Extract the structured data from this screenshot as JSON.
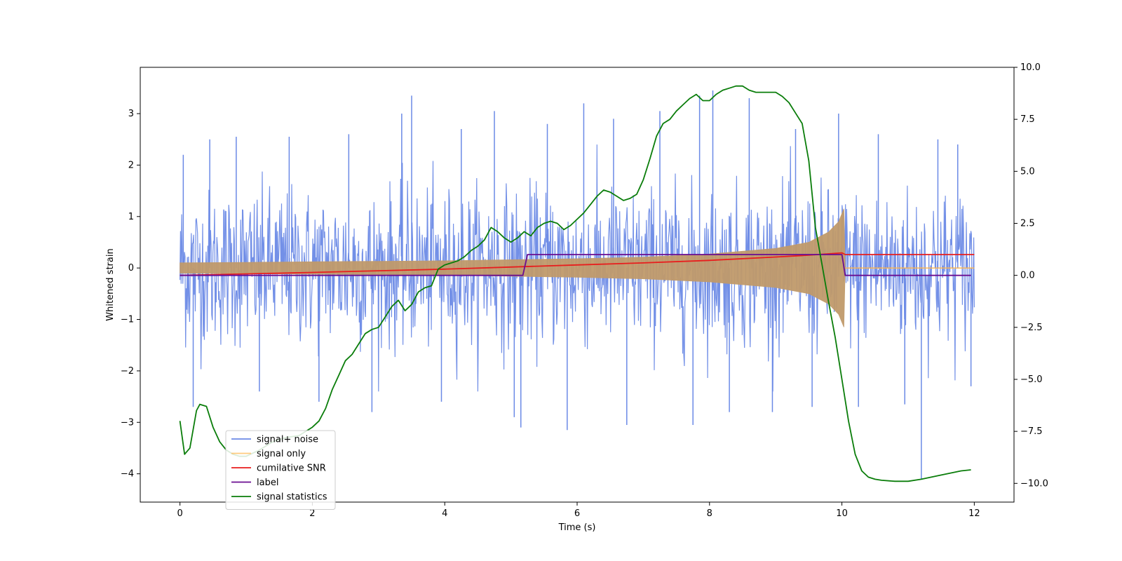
{
  "chart_data": {
    "type": "line",
    "title": "",
    "xlabel": "Time (s)",
    "ylabel": "Whitened strain",
    "y2label": "",
    "xlim": [
      -0.6,
      12.6
    ],
    "ylim": [
      -4.55,
      3.9
    ],
    "y2lim": [
      -10.9,
      10.0
    ],
    "x_ticks": [
      0,
      2,
      4,
      6,
      8,
      10,
      12
    ],
    "x_tick_labels": [
      "0",
      "2",
      "4",
      "6",
      "8",
      "10",
      "12"
    ],
    "y_ticks": [
      -4,
      -3,
      -2,
      -1,
      0,
      1,
      2,
      3
    ],
    "y_tick_labels": [
      "−4",
      "−3",
      "−2",
      "−1",
      "0",
      "1",
      "2",
      "3"
    ],
    "y2_ticks": [
      -10,
      -7.5,
      -5,
      -2.5,
      0,
      2.5,
      5,
      7.5,
      10
    ],
    "y2_tick_labels": [
      "−10.0",
      "−7.5",
      "−5.0",
      "−2.5",
      "0.0",
      "2.5",
      "5.0",
      "7.5",
      "10.0"
    ],
    "grid": false,
    "legend_position": "lower-left",
    "colors": {
      "noise": "#6b8ae6",
      "signal": "#ffb347",
      "signal_fill": "#c09a6b",
      "snr": "#e81d1d",
      "label": "#6a0d91",
      "stat": "#0a7d0a"
    },
    "series": [
      {
        "name": "signal+ noise",
        "axis": "left",
        "color": "#6b8ae6",
        "description_points": [
          [
            0,
            0
          ],
          [
            0.5,
            0.2
          ],
          [
            1,
            -0.1
          ],
          [
            2,
            0.1
          ],
          [
            3,
            -0.2
          ],
          [
            4,
            0.1
          ],
          [
            5,
            0
          ],
          [
            6,
            -0.1
          ],
          [
            7,
            0.2
          ],
          [
            8,
            0
          ],
          [
            9,
            -0.1
          ],
          [
            10,
            0.1
          ],
          [
            11,
            0
          ],
          [
            12,
            0
          ]
        ],
        "envelope": {
          "typical": 1.7,
          "peak": 3.4,
          "min_peak": -4.1
        },
        "spikes": [
          [
            0.05,
            2.2
          ],
          [
            0.2,
            -2.7
          ],
          [
            0.45,
            2.5
          ],
          [
            0.85,
            2.55
          ],
          [
            1.2,
            -2.4
          ],
          [
            1.65,
            2.55
          ],
          [
            2.1,
            -2.6
          ],
          [
            2.55,
            2.6
          ],
          [
            2.9,
            -2.8
          ],
          [
            3.35,
            3.0
          ],
          [
            3.5,
            3.35
          ],
          [
            3.95,
            -2.6
          ],
          [
            4.25,
            2.7
          ],
          [
            4.75,
            3.05
          ],
          [
            5.05,
            -2.9
          ],
          [
            5.15,
            -3.1
          ],
          [
            5.55,
            2.8
          ],
          [
            5.85,
            -3.15
          ],
          [
            6.1,
            3.2
          ],
          [
            6.55,
            2.9
          ],
          [
            6.75,
            -3.05
          ],
          [
            7.25,
            3.05
          ],
          [
            7.75,
            -3.05
          ],
          [
            7.85,
            3.35
          ],
          [
            8.05,
            3.45
          ],
          [
            8.3,
            -2.8
          ],
          [
            8.6,
            3.3
          ],
          [
            8.95,
            -2.8
          ],
          [
            9.3,
            2.7
          ],
          [
            9.55,
            -2.7
          ],
          [
            9.95,
            3.0
          ],
          [
            10.25,
            -2.7
          ],
          [
            10.55,
            2.6
          ],
          [
            10.95,
            -2.65
          ],
          [
            11.2,
            -4.1
          ],
          [
            11.45,
            2.5
          ],
          [
            11.75,
            2.4
          ],
          [
            11.95,
            -2.3
          ]
        ]
      },
      {
        "name": "signal only",
        "axis": "left",
        "color": "#ffb347",
        "envelope_points": [
          [
            0,
            0.1
          ],
          [
            1,
            0.11
          ],
          [
            2,
            0.12
          ],
          [
            3,
            0.13
          ],
          [
            4,
            0.14
          ],
          [
            5,
            0.16
          ],
          [
            6,
            0.18
          ],
          [
            7,
            0.21
          ],
          [
            8,
            0.27
          ],
          [
            9,
            0.38
          ],
          [
            9.5,
            0.5
          ],
          [
            9.8,
            0.7
          ],
          [
            9.95,
            0.9
          ],
          [
            10.03,
            1.15
          ],
          [
            10.05,
            0.0
          ],
          [
            12,
            0.0
          ]
        ]
      },
      {
        "name": "cumilative SNR",
        "axis": "right",
        "color": "#e81d1d",
        "x": [
          0,
          1,
          2,
          3,
          4,
          5,
          6,
          7,
          8,
          9,
          9.5,
          10,
          10.05,
          12
        ],
        "y": [
          0,
          0.07,
          0.14,
          0.22,
          0.3,
          0.4,
          0.5,
          0.6,
          0.72,
          0.88,
          0.97,
          1.08,
          1.0,
          1.0
        ]
      },
      {
        "name": "label",
        "axis": "right",
        "color": "#6a0d91",
        "x": [
          0,
          5.18,
          5.25,
          10.0,
          10.05,
          11.95
        ],
        "y": [
          0,
          0,
          1.0,
          1.0,
          0,
          0
        ]
      },
      {
        "name": "signal statistics",
        "axis": "right",
        "color": "#0a7d0a",
        "x": [
          0,
          0.07,
          0.15,
          0.25,
          0.3,
          0.4,
          0.5,
          0.6,
          0.7,
          0.8,
          0.9,
          1.0,
          1.2,
          1.4,
          1.6,
          1.8,
          1.9,
          2.0,
          2.1,
          2.2,
          2.3,
          2.4,
          2.5,
          2.6,
          2.7,
          2.8,
          2.9,
          3.0,
          3.1,
          3.2,
          3.3,
          3.4,
          3.5,
          3.6,
          3.7,
          3.8,
          3.9,
          4.0,
          4.1,
          4.2,
          4.3,
          4.4,
          4.5,
          4.6,
          4.7,
          4.8,
          4.9,
          5.0,
          5.1,
          5.2,
          5.3,
          5.4,
          5.5,
          5.6,
          5.7,
          5.8,
          5.9,
          6.0,
          6.1,
          6.2,
          6.3,
          6.4,
          6.5,
          6.6,
          6.7,
          6.8,
          6.9,
          7.0,
          7.1,
          7.2,
          7.3,
          7.4,
          7.5,
          7.6,
          7.7,
          7.8,
          7.9,
          8.0,
          8.1,
          8.2,
          8.3,
          8.4,
          8.5,
          8.6,
          8.7,
          8.8,
          8.9,
          9.0,
          9.1,
          9.2,
          9.3,
          9.4,
          9.5,
          9.6,
          9.7,
          9.8,
          9.9,
          10.0,
          10.1,
          10.2,
          10.3,
          10.4,
          10.5,
          10.6,
          10.8,
          11.0,
          11.2,
          11.5,
          11.8,
          11.95
        ],
        "y": [
          -7.0,
          -8.6,
          -8.3,
          -6.5,
          -6.2,
          -6.3,
          -7.3,
          -8.0,
          -8.4,
          -8.6,
          -8.7,
          -8.7,
          -8.4,
          -8.0,
          -7.8,
          -7.7,
          -7.5,
          -7.3,
          -7.0,
          -6.4,
          -5.5,
          -4.8,
          -4.1,
          -3.8,
          -3.3,
          -2.8,
          -2.6,
          -2.5,
          -2.0,
          -1.5,
          -1.2,
          -1.7,
          -1.4,
          -0.8,
          -0.6,
          -0.5,
          0.3,
          0.5,
          0.6,
          0.7,
          0.9,
          1.2,
          1.4,
          1.7,
          2.3,
          2.1,
          1.8,
          1.6,
          1.8,
          2.1,
          1.9,
          2.3,
          2.5,
          2.6,
          2.5,
          2.2,
          2.4,
          2.7,
          3.0,
          3.4,
          3.8,
          4.1,
          4.0,
          3.8,
          3.6,
          3.7,
          3.9,
          4.6,
          5.6,
          6.7,
          7.3,
          7.5,
          7.9,
          8.2,
          8.5,
          8.7,
          8.4,
          8.4,
          8.7,
          8.9,
          9.0,
          9.1,
          9.1,
          8.9,
          8.8,
          8.8,
          8.8,
          8.8,
          8.6,
          8.3,
          7.8,
          7.3,
          5.5,
          2.3,
          0.5,
          -1.3,
          -3.0,
          -5.0,
          -7.0,
          -8.6,
          -9.4,
          -9.7,
          -9.8,
          -9.85,
          -9.9,
          -9.9,
          -9.8,
          -9.6,
          -9.4,
          -9.35
        ]
      }
    ]
  }
}
